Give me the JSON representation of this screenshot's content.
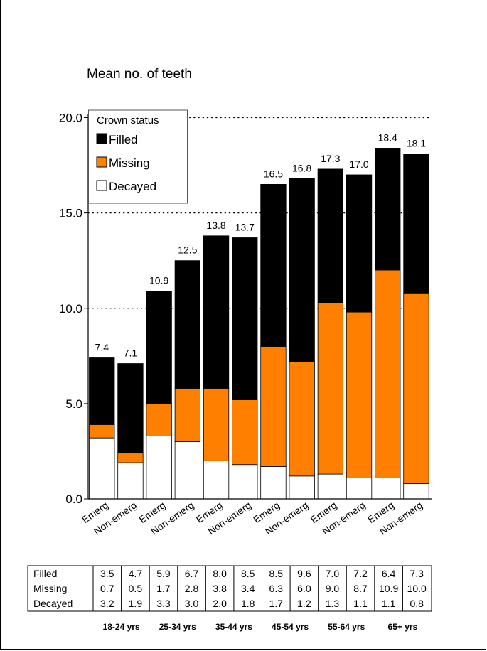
{
  "chart_data": {
    "type": "bar",
    "stacked": true,
    "title": "",
    "ylabel": "Mean no. of teeth",
    "ylim": [
      0,
      20
    ],
    "yticks": [
      "0.0",
      "5.0",
      "10.0",
      "15.0",
      "20.0"
    ],
    "grid": "dotted horizontal at 10, 15, 20",
    "categories": [
      "Emerg",
      "Non-emerg",
      "Emerg",
      "Non-emerg",
      "Emerg",
      "Non-emerg",
      "Emerg",
      "Non-emerg",
      "Emerg",
      "Non-emerg",
      "Emerg",
      "Non-emerg"
    ],
    "groups": [
      "18-24 yrs",
      "25-34 yrs",
      "35-44 yrs",
      "45-54 yrs",
      "55-64 yrs",
      "65+ yrs"
    ],
    "legend": {
      "title": "Crown status",
      "placement": "top-left"
    },
    "series": [
      {
        "name": "Filled",
        "color": "#000000",
        "values": [
          3.5,
          4.7,
          5.9,
          6.7,
          8.0,
          8.5,
          8.5,
          9.6,
          7.0,
          7.2,
          6.4,
          7.3
        ]
      },
      {
        "name": "Missing",
        "color": "#ff8000",
        "values": [
          0.7,
          0.5,
          1.7,
          2.8,
          3.8,
          3.4,
          6.3,
          6.0,
          9.0,
          8.7,
          10.9,
          10.0
        ]
      },
      {
        "name": "Decayed",
        "color": "#ffffff",
        "values": [
          3.2,
          1.9,
          3.3,
          3.0,
          2.0,
          1.8,
          1.7,
          1.2,
          1.3,
          1.1,
          1.1,
          0.8
        ]
      }
    ],
    "totals": [
      "7.4",
      "7.1",
      "10.9",
      "12.5",
      "13.8",
      "13.7",
      "16.5",
      "16.8",
      "17.3",
      "17.0",
      "18.4",
      "18.1"
    ],
    "table": {
      "rows": [
        {
          "label": "Filled",
          "cells": [
            "3.5",
            "4.7",
            "5.9",
            "6.7",
            "8.0",
            "8.5",
            "8.5",
            "9.6",
            "7.0",
            "7.2",
            "6.4",
            "7.3"
          ]
        },
        {
          "label": "Missing",
          "cells": [
            "0.7",
            "0.5",
            "1.7",
            "2.8",
            "3.8",
            "3.4",
            "6.3",
            "6.0",
            "9.0",
            "8.7",
            "10.9",
            "10.0"
          ]
        },
        {
          "label": "Decayed",
          "cells": [
            "3.2",
            "1.9",
            "3.3",
            "3.0",
            "2.0",
            "1.8",
            "1.7",
            "1.2",
            "1.3",
            "1.1",
            "1.1",
            "0.8"
          ]
        }
      ]
    }
  }
}
